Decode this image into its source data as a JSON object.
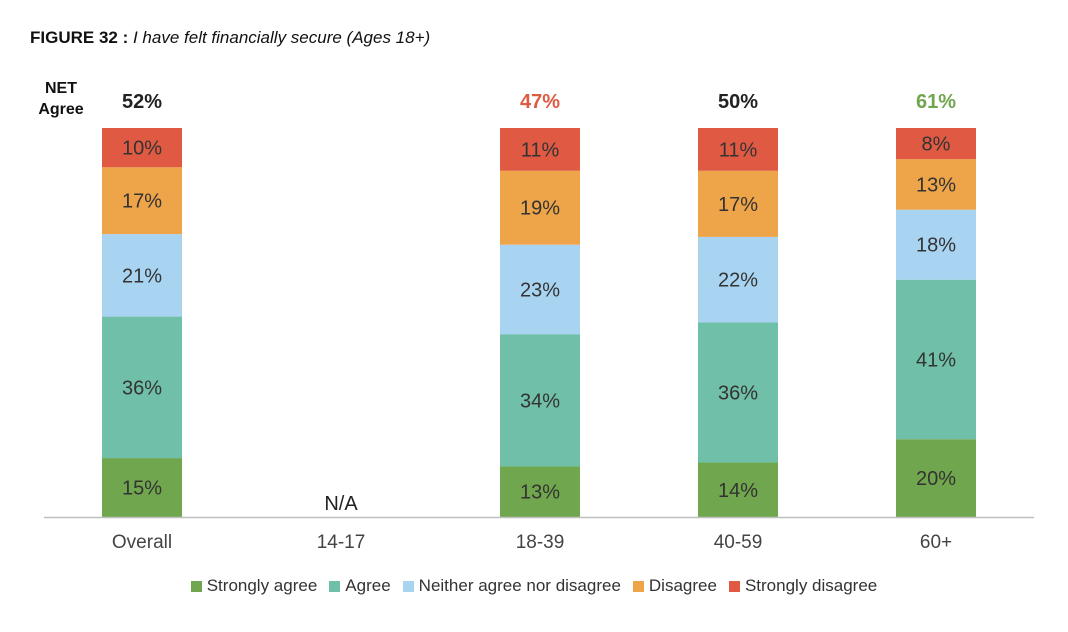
{
  "title": {
    "figure": "FIGURE 32 :",
    "subtitle": "I have felt financially secure (Ages 18+)"
  },
  "net_label": "NET Agree",
  "chart_data": {
    "type": "bar",
    "stacked": true,
    "orientation": "vertical",
    "categories": [
      "Overall",
      "14-17",
      "18-39",
      "40-59",
      "60+"
    ],
    "series": [
      {
        "name": "Strongly agree",
        "color": "#70a64d",
        "values": [
          15,
          null,
          13,
          14,
          20
        ]
      },
      {
        "name": "Agree",
        "color": "#70bfa8",
        "values": [
          36,
          null,
          34,
          36,
          41
        ]
      },
      {
        "name": "Neither agree nor disagree",
        "color": "#a8d4f2",
        "values": [
          21,
          null,
          23,
          22,
          18
        ]
      },
      {
        "name": "Disagree",
        "color": "#eea449",
        "values": [
          17,
          null,
          19,
          17,
          13
        ]
      },
      {
        "name": "Strongly disagree",
        "color": "#e05a43",
        "values": [
          10,
          null,
          11,
          11,
          8
        ]
      }
    ],
    "net_agree": [
      {
        "label": "52%",
        "color": "#222222"
      },
      {
        "label": "",
        "color": "#222222"
      },
      {
        "label": "47%",
        "color": "#e05a43"
      },
      {
        "label": "50%",
        "color": "#222222"
      },
      {
        "label": "61%",
        "color": "#70a64d"
      }
    ],
    "na_label": "N/A",
    "value_suffix": "%",
    "legend_position": "bottom",
    "grid": false
  }
}
